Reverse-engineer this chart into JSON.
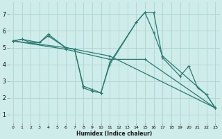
{
  "xlabel": "Humidex (Indice chaleur)",
  "bg_color": "#ceecea",
  "grid_color": "#aed4d0",
  "line_color": "#2a7a70",
  "xlim": [
    -0.5,
    23.5
  ],
  "ylim": [
    0.5,
    7.7
  ],
  "xticks": [
    0,
    1,
    2,
    3,
    4,
    5,
    6,
    7,
    8,
    9,
    10,
    11,
    12,
    13,
    14,
    15,
    16,
    17,
    18,
    19,
    20,
    21,
    22,
    23
  ],
  "yticks": [
    1,
    2,
    3,
    4,
    5,
    6,
    7
  ],
  "series": [
    {
      "x": [
        0,
        6,
        11,
        23
      ],
      "y": [
        5.4,
        5.0,
        4.5,
        1.4
      ]
    },
    {
      "x": [
        0,
        6,
        11,
        15,
        23
      ],
      "y": [
        5.4,
        4.9,
        4.3,
        4.3,
        1.4
      ]
    },
    {
      "x": [
        0,
        1,
        3,
        4,
        6,
        7,
        8,
        9,
        10,
        11,
        14,
        15,
        16,
        17,
        22,
        23
      ],
      "y": [
        5.4,
        5.5,
        5.3,
        5.8,
        5.0,
        4.9,
        2.7,
        2.5,
        2.3,
        4.1,
        6.5,
        7.1,
        5.9,
        4.5,
        2.2,
        1.4
      ]
    },
    {
      "x": [
        0,
        1,
        2,
        3,
        4,
        6,
        7,
        8,
        9,
        10,
        11,
        14,
        15,
        16,
        17,
        19,
        20,
        21,
        22,
        23
      ],
      "y": [
        5.4,
        5.5,
        5.3,
        5.3,
        5.7,
        5.0,
        4.9,
        2.6,
        2.4,
        2.3,
        4.0,
        6.5,
        7.1,
        7.1,
        4.4,
        3.3,
        3.9,
        2.6,
        2.2,
        1.4
      ]
    }
  ]
}
